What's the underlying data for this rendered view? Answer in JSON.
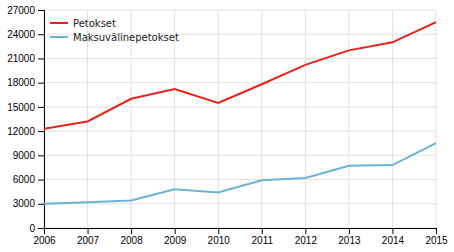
{
  "chart_data": {
    "type": "line",
    "x": [
      2006,
      2007,
      2008,
      2009,
      2010,
      2011,
      2012,
      2013,
      2014,
      2015
    ],
    "series": [
      {
        "name": "Petokset",
        "color": "#e8221a",
        "values": [
          12300,
          13200,
          16000,
          17200,
          15500,
          17800,
          20200,
          22000,
          23000,
          25500
        ]
      },
      {
        "name": "Maksuvälinepetokset",
        "color": "#6ab4d4",
        "values": [
          3000,
          3200,
          3400,
          4800,
          4400,
          5900,
          6200,
          7700,
          7800,
          10500
        ]
      }
    ],
    "xlim": [
      2006,
      2015
    ],
    "xticks": [
      2006,
      2007,
      2008,
      2009,
      2010,
      2011,
      2012,
      2013,
      2014,
      2015
    ],
    "ylim": [
      0,
      27000
    ],
    "yticks": [
      0,
      3000,
      6000,
      9000,
      12000,
      15000,
      18000,
      21000,
      24000,
      27000
    ],
    "grid": true,
    "legend": "upper left"
  }
}
